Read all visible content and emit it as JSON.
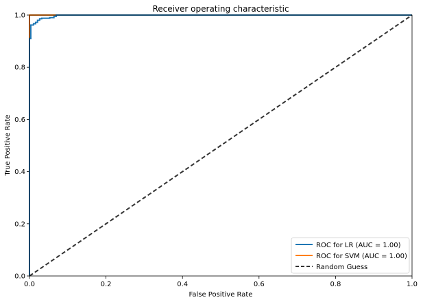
{
  "chart_data": {
    "type": "line",
    "title": "Receiver operating characteristic",
    "xlabel": "False Positive Rate",
    "ylabel": "True Positive Rate",
    "xlim": [
      0,
      1
    ],
    "ylim": [
      0,
      1
    ],
    "x_ticks": [
      "0.0",
      "0.2",
      "0.4",
      "0.6",
      "0.8",
      "1.0"
    ],
    "y_ticks": [
      "0.0",
      "0.2",
      "0.4",
      "0.6",
      "0.8",
      "1.0"
    ],
    "grid": false,
    "legend_position": "lower-right",
    "series": [
      {
        "name": "ROC for LR (AUC = 1.00)",
        "color": "#1f77b4",
        "style": "solid",
        "x": [
          0.0,
          0.0,
          0.0,
          0.0035,
          0.0035,
          0.0105,
          0.0105,
          0.016,
          0.016,
          0.021,
          0.021,
          0.0265,
          0.0265,
          0.032,
          0.032,
          0.053,
          0.053,
          0.064,
          0.064,
          0.07,
          0.07,
          1.0
        ],
        "y": [
          0.0,
          0.91,
          0.91,
          0.91,
          0.962,
          0.962,
          0.967,
          0.967,
          0.972,
          0.972,
          0.98,
          0.98,
          0.986,
          0.986,
          0.988,
          0.988,
          0.99,
          0.99,
          0.995,
          0.995,
          1.0,
          1.0
        ]
      },
      {
        "name": "ROC for SVM (AUC = 1.00)",
        "color": "#ff7f0e",
        "style": "solid",
        "x": [
          0.0,
          0.0,
          1.0
        ],
        "y": [
          0.0,
          1.0,
          1.0
        ]
      },
      {
        "name": "Random Guess",
        "color": "#333333",
        "style": "dashed",
        "x": [
          0.0,
          1.0
        ],
        "y": [
          0.0,
          1.0
        ]
      }
    ]
  }
}
